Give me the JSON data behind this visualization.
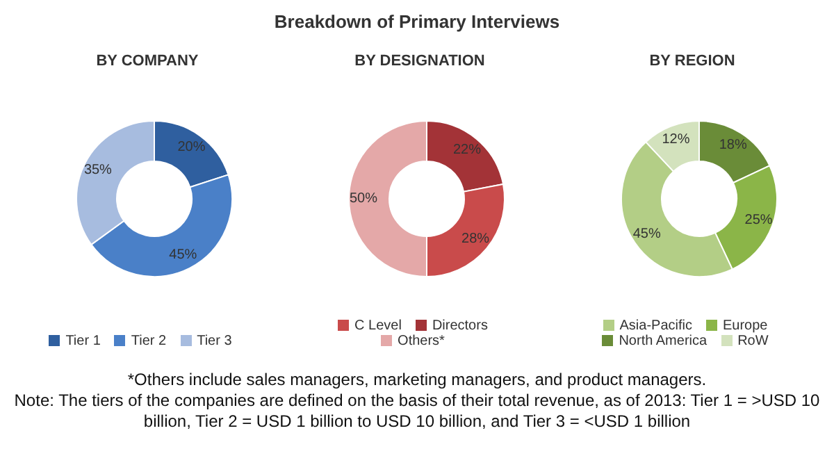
{
  "chart_data": [
    {
      "type": "donut",
      "title": "BY COMPANY",
      "categories": [
        "Tier 1",
        "Tier 2",
        "Tier 3"
      ],
      "values": [
        20,
        45,
        35
      ],
      "value_labels": [
        "20%",
        "45%",
        "35%"
      ],
      "colors": [
        "#2f5f9f",
        "#4a80c8",
        "#a7bcdf"
      ],
      "legend": "bottom"
    },
    {
      "type": "donut",
      "title": "BY DESIGNATION",
      "categories": [
        "Directors",
        "C Level",
        "Others*"
      ],
      "values": [
        22,
        28,
        50
      ],
      "value_labels": [
        "22%",
        "28%",
        "50%"
      ],
      "colors": [
        "#a33337",
        "#c94b4b",
        "#e4a8a8"
      ],
      "legend": "bottom"
    },
    {
      "type": "donut",
      "title": "BY REGION",
      "categories": [
        "North America",
        "Europe",
        "Asia-Pacific",
        "RoW"
      ],
      "values": [
        18,
        25,
        45,
        12
      ],
      "value_labels": [
        "18%",
        "25%",
        "45%",
        "12%"
      ],
      "colors": [
        "#6a8c38",
        "#8bb548",
        "#b3ce86",
        "#d3e2bd"
      ],
      "legend": "bottom"
    },
    {
      "type": "other",
      "title": "Breakdown of Primary Interviews",
      "annotations": [
        "*Others include sales managers, marketing managers, and product managers.",
        "Note: The tiers of the companies are defined on the basis of their total revenue, as of 2013: Tier 1 = >USD 10 billion, Tier 2 = USD 1 billion to USD 10 billion, and Tier 3 = <USD 1 billion"
      ]
    }
  ]
}
